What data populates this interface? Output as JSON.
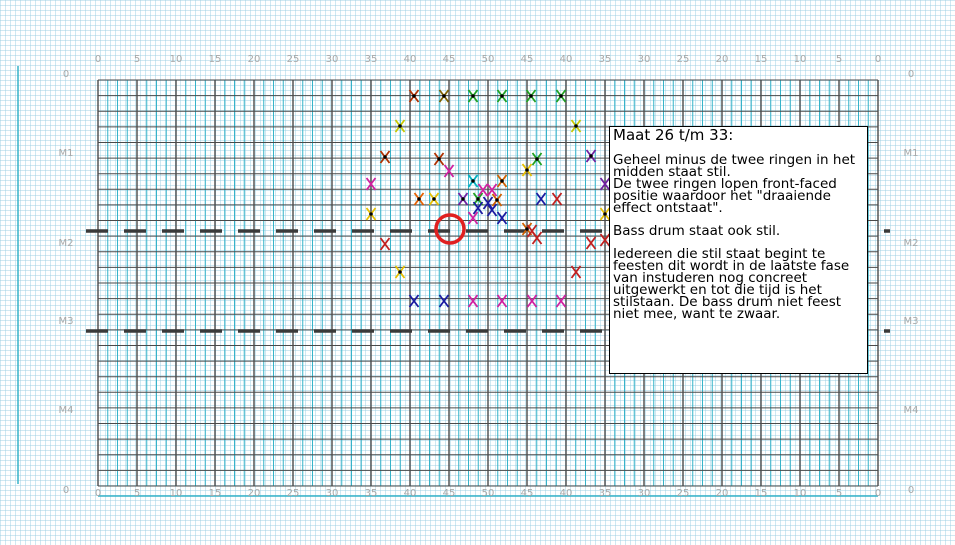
{
  "scale_labels": [
    "0",
    "5",
    "10",
    "15",
    "20",
    "25",
    "30",
    "35",
    "40",
    "45",
    "50",
    "45",
    "40",
    "35",
    "30",
    "25",
    "20",
    "15",
    "10",
    "5",
    "0"
  ],
  "measure_labels": [
    "0",
    "M1",
    "M2",
    "M3",
    "M4",
    "0"
  ],
  "colors": {
    "grid_cyan": "#36b3c9",
    "grid_dark": "#4a4a4a",
    "dashed_line": "#3a3a3a",
    "highlight_circle": "#e02020",
    "note_border": "#000000"
  },
  "note": {
    "title": "Maat 26 t/m 33:",
    "p1": "Geheel minus de twee ringen in het midden staat stil.",
    "p2": "De twee ringen lopen front-faced positie waardoor het \"draaiende effect ontstaat\".",
    "p3": "Bass drum staat ook stil.",
    "p4": "Iedereen die stil staat begint te feesten dit wordt in de laatste fase van instuderen nog concreet uitgewerkt en tot die tijd is het stilstaan. De bass drum niet feest niet mee, want te zwaar."
  },
  "markers": [
    {
      "color": "#b03000",
      "dot": true
    },
    {
      "color": "#806000",
      "dot": true
    },
    {
      "color": "#20a020",
      "dot": true
    },
    {
      "color": "#20a020",
      "dot": true
    },
    {
      "color": "#20a020",
      "dot": true
    },
    {
      "color": "#20a020",
      "dot": true
    },
    {
      "color": "#c8c800",
      "dot": true
    },
    {
      "color": "#c8c800",
      "dot": true
    },
    {
      "color": "#b03000",
      "dot": true
    },
    {
      "color": "#b03000",
      "dot": true
    },
    {
      "color": "#20a020",
      "dot": true
    },
    {
      "color": "#7020a0",
      "dot": true
    },
    {
      "color": "#d020a0",
      "dot": false
    },
    {
      "color": "#d020a0",
      "dot": false
    },
    {
      "color": "#d06000",
      "dot": true
    },
    {
      "color": "#7020a0",
      "dot": false
    },
    {
      "color": "#e8c000",
      "dot": true
    },
    {
      "color": "#e86000",
      "dot": true
    },
    {
      "color": "#e8c000",
      "dot": true
    },
    {
      "color": "#7020a0",
      "dot": true
    },
    {
      "color": "#20a020",
      "dot": true
    },
    {
      "color": "#1a1aa0",
      "dot": false
    },
    {
      "color": "#c02020",
      "dot": false
    },
    {
      "color": "#00b0c0",
      "dot": true
    },
    {
      "color": "#d020a0",
      "dot": false
    },
    {
      "color": "#d020a0",
      "dot": false
    },
    {
      "color": "#d06000",
      "dot": true
    },
    {
      "color": "#1a1aa0",
      "dot": false
    },
    {
      "color": "#1a1aa0",
      "dot": false
    },
    {
      "color": "#1a1aa0",
      "dot": false
    },
    {
      "color": "#d020a0",
      "dot": false
    },
    {
      "color": "#1a1aa0",
      "dot": false
    },
    {
      "color": "#e8c000",
      "dot": true
    },
    {
      "color": "#d06000",
      "dot": true
    },
    {
      "color": "#c02020",
      "dot": false
    },
    {
      "color": "#c02020",
      "dot": false
    },
    {
      "color": "#c02020",
      "dot": false
    },
    {
      "color": "#c02020",
      "dot": false
    },
    {
      "color": "#e8c000",
      "dot": true
    },
    {
      "color": "#c02020",
      "dot": false
    },
    {
      "color": "#e8c000",
      "dot": true
    },
    {
      "color": "#c02020",
      "dot": false
    },
    {
      "color": "#1a1aa0",
      "dot": false
    },
    {
      "color": "#1a1aa0",
      "dot": false
    },
    {
      "color": "#d020a0",
      "dot": false
    },
    {
      "color": "#d020a0",
      "dot": false
    },
    {
      "color": "#d020a0",
      "dot": false
    },
    {
      "color": "#d020a0",
      "dot": false
    }
  ]
}
